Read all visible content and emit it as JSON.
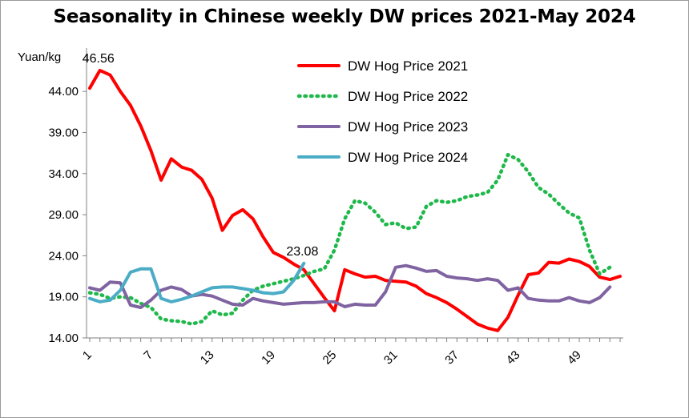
{
  "chart_data": {
    "type": "line",
    "title": "Seasonality in Chinese weekly DW prices 2021-May 2024",
    "ylabel": "Yuan/kg",
    "ylim": [
      14,
      48.5
    ],
    "yticks": [
      "14.00",
      "19.00",
      "24.00",
      "29.00",
      "34.00",
      "39.00",
      "44.00"
    ],
    "xlim": [
      1,
      53
    ],
    "xticks": [
      "1",
      "7",
      "13",
      "19",
      "25",
      "31",
      "37",
      "43",
      "49"
    ],
    "legend_position": "top-right",
    "colors": {
      "s2021": "#ff0000",
      "s2022": "#1fb84a",
      "s2023": "#8064a2",
      "s2024": "#4bacc6"
    },
    "series": [
      {
        "name": "DW Hog Price 2021",
        "style": "solid",
        "color": "#ff0000",
        "values": [
          44.4,
          46.56,
          46.0,
          44.0,
          42.3,
          39.8,
          36.8,
          33.2,
          35.8,
          34.8,
          34.4,
          33.3,
          31.0,
          27.1,
          28.9,
          29.6,
          28.5,
          26.3,
          24.4,
          23.8,
          23.0,
          22.3,
          20.6,
          18.9,
          17.3,
          22.3,
          21.8,
          21.4,
          21.5,
          21.0,
          20.9,
          20.8,
          20.3,
          19.4,
          18.9,
          18.3,
          17.5,
          16.6,
          15.7,
          15.2,
          14.9,
          16.5,
          19.2,
          21.7,
          21.9,
          23.2,
          23.1,
          23.6,
          23.3,
          22.7,
          21.4,
          21.1,
          21.5
        ]
      },
      {
        "name": "DW Hog Price 2022",
        "style": "dotted",
        "color": "#1fb84a",
        "values": [
          19.5,
          19.3,
          18.8,
          19.0,
          18.9,
          18.2,
          17.7,
          16.3,
          16.1,
          16.0,
          15.7,
          16.0,
          17.3,
          16.8,
          17.0,
          18.6,
          19.8,
          20.3,
          20.6,
          20.9,
          21.2,
          21.6,
          22.1,
          22.4,
          24.7,
          28.5,
          30.7,
          30.4,
          29.3,
          27.8,
          28.0,
          27.3,
          27.5,
          30.0,
          30.7,
          30.5,
          30.7,
          31.2,
          31.4,
          31.7,
          33.2,
          36.3,
          35.7,
          34.2,
          32.3,
          31.5,
          30.3,
          29.2,
          28.6,
          24.7,
          21.8,
          22.6
        ]
      },
      {
        "name": "DW Hog Price 2023",
        "style": "solid",
        "color": "#8064a2",
        "values": [
          20.1,
          19.8,
          20.8,
          20.7,
          18.0,
          17.7,
          18.6,
          19.8,
          20.2,
          19.9,
          19.1,
          19.3,
          19.1,
          18.6,
          18.1,
          18.0,
          18.8,
          18.5,
          18.3,
          18.1,
          18.2,
          18.3,
          18.3,
          18.4,
          18.4,
          17.8,
          18.1,
          18.0,
          18.0,
          19.6,
          22.6,
          22.8,
          22.5,
          22.1,
          22.2,
          21.5,
          21.3,
          21.2,
          21.0,
          21.2,
          21.0,
          19.8,
          20.1,
          18.8,
          18.6,
          18.5,
          18.5,
          18.9,
          18.5,
          18.3,
          18.9,
          20.2
        ]
      },
      {
        "name": "DW Hog Price 2024",
        "style": "solid",
        "color": "#4bacc6",
        "values": [
          18.8,
          18.4,
          18.6,
          19.8,
          22.0,
          22.4,
          22.4,
          18.8,
          18.4,
          18.7,
          19.1,
          19.6,
          20.1,
          20.2,
          20.2,
          20.0,
          19.8,
          19.5,
          19.4,
          19.6,
          21.0,
          23.08
        ]
      }
    ],
    "annotations": [
      {
        "series": 0,
        "week": 2,
        "text": "46.56"
      },
      {
        "series": 3,
        "week": 22,
        "text": "23.08"
      }
    ]
  }
}
